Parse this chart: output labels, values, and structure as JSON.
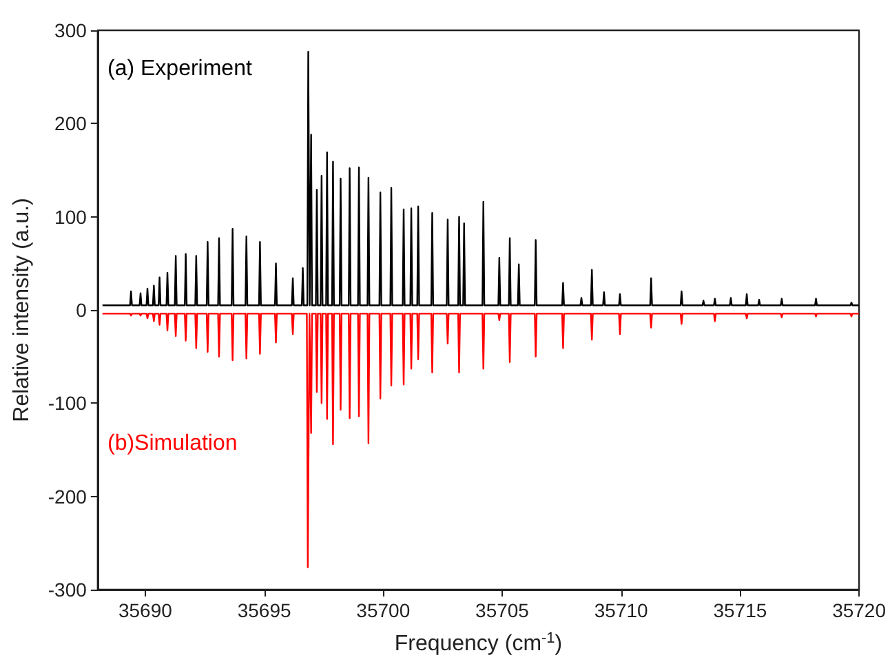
{
  "chart_data": {
    "type": "line",
    "xlabel": "Frequency (cm$^{-1}$)",
    "ylabel": "Relative intensity (a.u.)",
    "xlim": [
      35688,
      35720
    ],
    "xticks": [
      35690,
      35695,
      35700,
      35705,
      35710,
      35715,
      35720
    ],
    "ylim": [
      -300,
      300
    ],
    "yticks": [
      -300,
      -200,
      -100,
      0,
      100,
      200,
      300
    ],
    "grid": false,
    "legend": false,
    "marker": "none",
    "line_style": "solid",
    "series": [
      {
        "name": "(a) Experiment",
        "color": "#000000",
        "x": [
          35688.2,
          35689.36,
          35689.4,
          35689.44,
          35689.76,
          35689.8,
          35689.84,
          35690.05,
          35690.09,
          35690.13,
          35690.32,
          35690.36,
          35690.4,
          35690.56,
          35690.6,
          35690.64,
          35690.89,
          35690.93,
          35690.97,
          35691.24,
          35691.28,
          35691.32,
          35691.66,
          35691.7,
          35691.74,
          35692.1,
          35692.14,
          35692.18,
          35692.58,
          35692.62,
          35692.66,
          35693.06,
          35693.1,
          35693.14,
          35693.63,
          35693.67,
          35693.71,
          35694.21,
          35694.25,
          35694.29,
          35694.78,
          35694.82,
          35694.86,
          35695.45,
          35695.49,
          35695.53,
          35696.16,
          35696.2,
          35696.24,
          35696.58,
          35696.62,
          35696.66,
          35696.81,
          35696.85,
          35696.91,
          35696.97,
          35697.01,
          35697.17,
          35697.21,
          35697.25,
          35697.37,
          35697.41,
          35697.45,
          35697.6,
          35697.64,
          35697.68,
          35697.85,
          35697.89,
          35697.93,
          35698.17,
          35698.21,
          35698.25,
          35698.55,
          35698.59,
          35698.63,
          35698.94,
          35698.98,
          35699.02,
          35699.34,
          35699.38,
          35699.42,
          35699.84,
          35699.88,
          35699.92,
          35700.3,
          35700.34,
          35700.38,
          35700.82,
          35700.86,
          35700.9,
          35701.14,
          35701.18,
          35701.22,
          35701.43,
          35701.47,
          35701.51,
          35702.02,
          35702.06,
          35702.1,
          35702.67,
          35702.71,
          35702.75,
          35703.15,
          35703.19,
          35703.23,
          35703.36,
          35703.4,
          35703.44,
          35704.17,
          35704.21,
          35704.25,
          35704.84,
          35704.88,
          35704.92,
          35705.28,
          35705.32,
          35705.36,
          35705.66,
          35705.7,
          35705.74,
          35706.37,
          35706.41,
          35706.45,
          35707.52,
          35707.56,
          35707.6,
          35708.29,
          35708.33,
          35708.37,
          35708.73,
          35708.77,
          35708.81,
          35709.24,
          35709.28,
          35709.32,
          35709.91,
          35709.95,
          35709.99,
          35711.22,
          35711.26,
          35711.3,
          35712.5,
          35712.54,
          35712.58,
          35713.42,
          35713.46,
          35713.5,
          35713.9,
          35713.94,
          35713.98,
          35714.57,
          35714.61,
          35714.65,
          35715.24,
          35715.28,
          35715.32,
          35715.76,
          35715.8,
          35715.84,
          35716.71,
          35716.75,
          35716.79,
          35718.15,
          35718.19,
          35718.23,
          35719.64,
          35719.68,
          35719.72,
          35720
        ],
        "values": [
          5,
          5,
          20,
          5,
          5,
          18,
          5,
          5,
          23,
          5,
          5,
          26,
          5,
          5,
          35,
          5,
          5,
          40,
          5,
          5,
          58,
          5,
          5,
          60,
          5,
          5,
          58,
          5,
          5,
          73,
          5,
          5,
          77,
          5,
          5,
          87,
          5,
          5,
          79,
          5,
          5,
          73,
          5,
          5,
          50,
          5,
          5,
          34,
          5,
          5,
          45,
          5,
          5,
          277,
          5,
          188,
          5,
          5,
          129,
          5,
          5,
          144,
          5,
          5,
          169,
          5,
          5,
          159,
          5,
          5,
          141,
          5,
          5,
          152,
          5,
          5,
          153,
          5,
          5,
          142,
          5,
          5,
          126,
          5,
          5,
          131,
          5,
          5,
          108,
          5,
          5,
          109,
          5,
          5,
          111,
          5,
          5,
          104,
          5,
          5,
          97,
          5,
          5,
          100,
          5,
          5,
          93,
          5,
          5,
          116,
          5,
          5,
          56,
          5,
          5,
          77,
          5,
          5,
          49,
          5,
          5,
          75,
          5,
          5,
          29,
          5,
          5,
          13,
          5,
          5,
          43,
          5,
          5,
          19,
          5,
          5,
          17,
          5,
          5,
          34,
          5,
          5,
          20,
          5,
          5,
          10,
          5,
          5,
          12,
          5,
          5,
          13,
          5,
          5,
          17,
          5,
          5,
          11,
          5,
          5,
          12,
          5,
          5,
          12,
          5,
          5,
          8,
          5,
          5
        ]
      },
      {
        "name": "(b)Simulation",
        "color": "#ff0000",
        "x": [
          35688.2,
          35689.36,
          35689.4,
          35689.44,
          35689.76,
          35689.8,
          35689.84,
          35690.05,
          35690.09,
          35690.13,
          35690.32,
          35690.36,
          35690.4,
          35690.56,
          35690.6,
          35690.64,
          35690.89,
          35690.93,
          35690.97,
          35691.24,
          35691.28,
          35691.32,
          35691.66,
          35691.7,
          35691.74,
          35692.1,
          35692.14,
          35692.18,
          35692.58,
          35692.62,
          35692.66,
          35693.06,
          35693.1,
          35693.14,
          35693.63,
          35693.67,
          35693.71,
          35694.21,
          35694.25,
          35694.29,
          35694.78,
          35694.82,
          35694.86,
          35695.45,
          35695.49,
          35695.53,
          35696.16,
          35696.2,
          35696.24,
          35696.79,
          35696.83,
          35696.9,
          35696.97,
          35697.01,
          35697.17,
          35697.21,
          35697.25,
          35697.37,
          35697.41,
          35697.45,
          35697.6,
          35697.64,
          35697.68,
          35697.85,
          35697.89,
          35697.93,
          35698.17,
          35698.21,
          35698.25,
          35698.55,
          35698.59,
          35698.63,
          35698.94,
          35698.98,
          35699.02,
          35699.34,
          35699.38,
          35699.42,
          35699.84,
          35699.88,
          35699.92,
          35700.3,
          35700.34,
          35700.38,
          35700.82,
          35700.86,
          35700.9,
          35701.14,
          35701.18,
          35701.22,
          35701.43,
          35701.47,
          35701.51,
          35702.02,
          35702.06,
          35702.1,
          35702.67,
          35702.71,
          35702.75,
          35703.15,
          35703.19,
          35703.23,
          35704.17,
          35704.21,
          35704.25,
          35704.84,
          35704.88,
          35704.92,
          35705.28,
          35705.32,
          35705.36,
          35706.37,
          35706.41,
          35706.45,
          35707.52,
          35707.56,
          35707.6,
          35708.73,
          35708.77,
          35708.81,
          35709.91,
          35709.95,
          35709.99,
          35711.22,
          35711.26,
          35711.3,
          35712.5,
          35712.54,
          35712.58,
          35713.9,
          35713.94,
          35713.98,
          35715.24,
          35715.28,
          35715.32,
          35716.71,
          35716.75,
          35716.79,
          35718.15,
          35718.19,
          35718.23,
          35719.64,
          35719.68,
          35719.72,
          35720
        ],
        "values": [
          -4,
          -4,
          -6,
          -4,
          -4,
          -6,
          -4,
          -4,
          -9,
          -4,
          -4,
          -12,
          -4,
          -4,
          -16,
          -4,
          -4,
          -22,
          -4,
          -4,
          -28,
          -4,
          -4,
          -33,
          -4,
          -4,
          -41,
          -4,
          -4,
          -45,
          -4,
          -4,
          -50,
          -4,
          -4,
          -54,
          -4,
          -4,
          -52,
          -4,
          -4,
          -47,
          -4,
          -4,
          -35,
          -4,
          -4,
          -26,
          -4,
          -4,
          -276,
          -4,
          -132,
          -4,
          -4,
          -88,
          -4,
          -4,
          -100,
          -4,
          -4,
          -117,
          -4,
          -4,
          -144,
          -4,
          -4,
          -107,
          -4,
          -4,
          -116,
          -4,
          -4,
          -114,
          -4,
          -4,
          -143,
          -4,
          -4,
          -95,
          -4,
          -4,
          -81,
          -4,
          -4,
          -80,
          -4,
          -4,
          -63,
          -4,
          -4,
          -53,
          -4,
          -4,
          -67,
          -4,
          -4,
          -36,
          -4,
          -4,
          -67,
          -4,
          -4,
          -63,
          -4,
          -4,
          -11,
          -4,
          -4,
          -56,
          -4,
          -4,
          -50,
          -4,
          -4,
          -41,
          -4,
          -4,
          -32,
          -4,
          -4,
          -26,
          -4,
          -4,
          -19,
          -4,
          -4,
          -15,
          -4,
          -4,
          -12,
          -4,
          -4,
          -9,
          -4,
          -4,
          -8,
          -4,
          -4,
          -7,
          -4,
          -4,
          -7,
          -4,
          -4
        ]
      }
    ]
  }
}
